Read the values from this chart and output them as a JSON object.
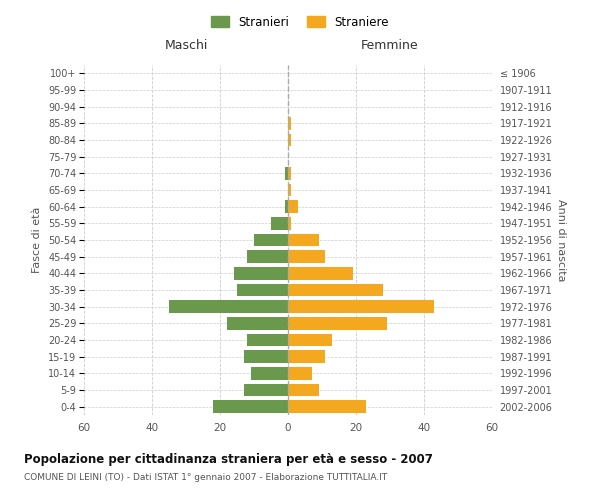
{
  "age_groups": [
    "0-4",
    "5-9",
    "10-14",
    "15-19",
    "20-24",
    "25-29",
    "30-34",
    "35-39",
    "40-44",
    "45-49",
    "50-54",
    "55-59",
    "60-64",
    "65-69",
    "70-74",
    "75-79",
    "80-84",
    "85-89",
    "90-94",
    "95-99",
    "100+"
  ],
  "birth_years": [
    "2002-2006",
    "1997-2001",
    "1992-1996",
    "1987-1991",
    "1982-1986",
    "1977-1981",
    "1972-1976",
    "1967-1971",
    "1962-1966",
    "1957-1961",
    "1952-1956",
    "1947-1951",
    "1942-1946",
    "1937-1941",
    "1932-1936",
    "1927-1931",
    "1922-1926",
    "1917-1921",
    "1912-1916",
    "1907-1911",
    "≤ 1906"
  ],
  "maschi": [
    22,
    13,
    11,
    13,
    12,
    18,
    35,
    15,
    16,
    12,
    10,
    5,
    1,
    0,
    1,
    0,
    0,
    0,
    0,
    0,
    0
  ],
  "femmine": [
    23,
    9,
    7,
    11,
    13,
    29,
    43,
    28,
    19,
    11,
    9,
    1,
    3,
    1,
    1,
    0,
    1,
    1,
    0,
    0,
    0
  ],
  "maschi_color": "#6a994e",
  "femmine_color": "#f4a820",
  "grid_color": "#cccccc",
  "center_line_color": "#aaaaaa",
  "title": "Popolazione per cittadinanza straniera per età e sesso - 2007",
  "subtitle": "COMUNE DI LEINI (TO) - Dati ISTAT 1° gennaio 2007 - Elaborazione TUTTITALIA.IT",
  "ylabel_left": "Fasce di età",
  "ylabel_right": "Anni di nascita",
  "header_maschi": "Maschi",
  "header_femmine": "Femmine",
  "legend_stranieri": "Stranieri",
  "legend_straniere": "Straniere",
  "xlim": 60,
  "bar_height": 0.75
}
